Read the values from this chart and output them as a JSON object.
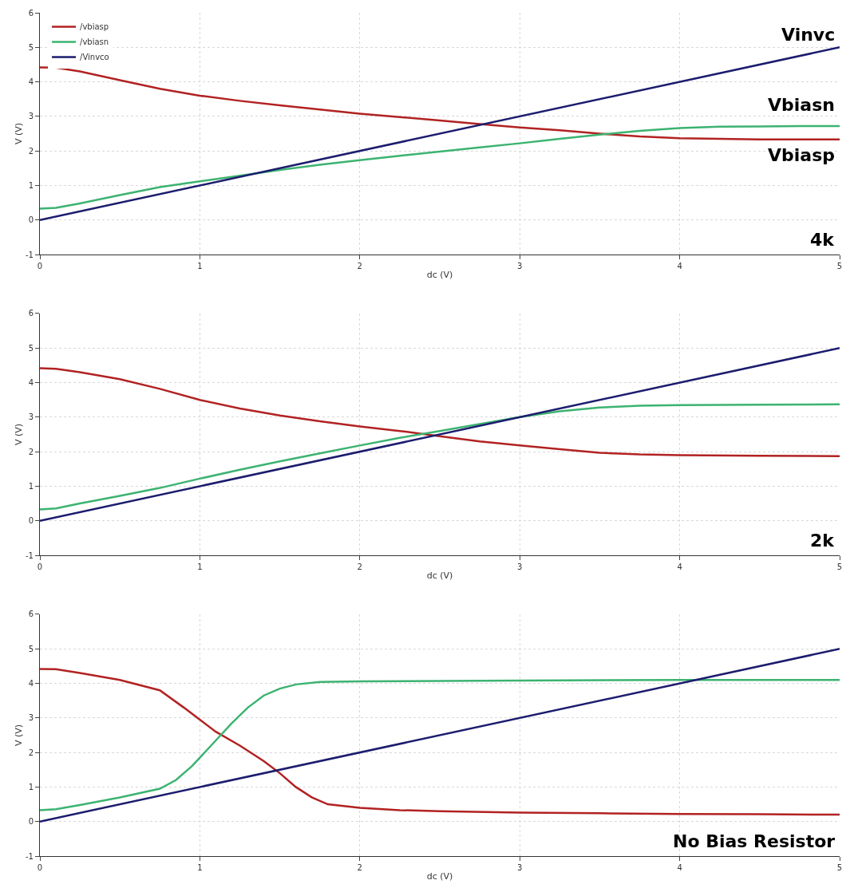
{
  "chart_data": [
    {
      "type": "line",
      "xlabel": "dc (V)",
      "ylabel": "V (V)",
      "xlim": [
        0,
        5
      ],
      "ylim": [
        -1,
        6
      ],
      "xticks": [
        0,
        1,
        2,
        3,
        4,
        5
      ],
      "yticks": [
        -1,
        0,
        1,
        2,
        3,
        4,
        5,
        6
      ],
      "grid": true,
      "legend": "top left",
      "marker": "none",
      "line_style": "solid",
      "series": [
        {
          "name": "/vbiasp",
          "color": "#b22222",
          "x": [
            0,
            0.1,
            0.25,
            0.5,
            0.75,
            1,
            1.25,
            1.5,
            1.75,
            2,
            2.25,
            2.5,
            2.75,
            3,
            3.25,
            3.5,
            3.75,
            4,
            4.25,
            4.5,
            4.75,
            5
          ],
          "values": [
            4.42,
            4.41,
            4.3,
            4.05,
            3.8,
            3.6,
            3.45,
            3.32,
            3.2,
            3.08,
            2.98,
            2.88,
            2.78,
            2.68,
            2.6,
            2.5,
            2.42,
            2.37,
            2.35,
            2.33,
            2.33,
            2.33
          ]
        },
        {
          "name": "/vbiasn",
          "color": "#3cb371",
          "x": [
            0,
            0.1,
            0.25,
            0.5,
            0.75,
            1,
            1.25,
            1.5,
            1.75,
            2,
            2.25,
            2.5,
            2.75,
            3,
            3.25,
            3.5,
            3.75,
            4,
            4.25,
            4.5,
            4.75,
            5
          ],
          "values": [
            0.33,
            0.35,
            0.48,
            0.72,
            0.95,
            1.12,
            1.28,
            1.45,
            1.6,
            1.73,
            1.86,
            1.98,
            2.1,
            2.22,
            2.35,
            2.47,
            2.58,
            2.66,
            2.7,
            2.71,
            2.72,
            2.72
          ]
        },
        {
          "name": "/Vinvco",
          "color": "#1c1c6e",
          "x": [
            0,
            5
          ],
          "values": [
            0,
            5
          ]
        }
      ],
      "annotations": [
        "Vinvc",
        "Vbiasn",
        "Vbiasp",
        "4k"
      ]
    },
    {
      "type": "line",
      "xlabel": "dc (V)",
      "ylabel": "V (V)",
      "xlim": [
        0,
        5
      ],
      "ylim": [
        -1,
        6
      ],
      "xticks": [
        0,
        1,
        2,
        3,
        4,
        5
      ],
      "yticks": [
        -1,
        0,
        1,
        2,
        3,
        4,
        5,
        6
      ],
      "grid": true,
      "marker": "none",
      "line_style": "solid",
      "series": [
        {
          "color": "#b22222",
          "x": [
            0,
            0.1,
            0.25,
            0.5,
            0.75,
            1,
            1.25,
            1.5,
            1.75,
            2,
            2.25,
            2.5,
            2.75,
            3,
            3.25,
            3.5,
            3.75,
            4,
            4.5,
            5
          ],
          "values": [
            4.42,
            4.4,
            4.3,
            4.1,
            3.82,
            3.5,
            3.25,
            3.05,
            2.88,
            2.73,
            2.6,
            2.45,
            2.3,
            2.18,
            2.07,
            1.97,
            1.92,
            1.9,
            1.88,
            1.87
          ]
        },
        {
          "color": "#3cb371",
          "x": [
            0,
            0.1,
            0.25,
            0.5,
            0.75,
            1,
            1.25,
            1.5,
            1.75,
            2,
            2.25,
            2.5,
            2.75,
            3,
            3.25,
            3.5,
            3.75,
            4,
            4.5,
            5
          ],
          "values": [
            0.33,
            0.36,
            0.5,
            0.72,
            0.95,
            1.22,
            1.48,
            1.72,
            1.95,
            2.18,
            2.4,
            2.6,
            2.8,
            3.0,
            3.17,
            3.28,
            3.33,
            3.35,
            3.36,
            3.37
          ]
        },
        {
          "color": "#1c1c6e",
          "x": [
            0,
            5
          ],
          "values": [
            0,
            5
          ]
        }
      ],
      "annotations": [
        "2k"
      ]
    },
    {
      "type": "line",
      "xlabel": "dc (V)",
      "ylabel": "V (V)",
      "xlim": [
        0,
        5
      ],
      "ylim": [
        -1,
        6
      ],
      "xticks": [
        0,
        1,
        2,
        3,
        4,
        5
      ],
      "yticks": [
        -1,
        0,
        1,
        2,
        3,
        4,
        5,
        6
      ],
      "grid": true,
      "marker": "none",
      "line_style": "solid",
      "series": [
        {
          "color": "#b22222",
          "x": [
            0,
            0.1,
            0.25,
            0.5,
            0.75,
            0.9,
            1,
            1.1,
            1.25,
            1.4,
            1.5,
            1.6,
            1.7,
            1.8,
            2,
            2.25,
            2.5,
            3,
            3.5,
            4,
            4.5,
            5
          ],
          "values": [
            4.42,
            4.41,
            4.3,
            4.1,
            3.8,
            3.3,
            2.95,
            2.6,
            2.2,
            1.75,
            1.4,
            1.0,
            0.7,
            0.5,
            0.4,
            0.33,
            0.3,
            0.26,
            0.24,
            0.22,
            0.21,
            0.2
          ]
        },
        {
          "color": "#3cb371",
          "x": [
            0,
            0.1,
            0.25,
            0.5,
            0.75,
            0.85,
            0.95,
            1,
            1.1,
            1.2,
            1.3,
            1.4,
            1.5,
            1.6,
            1.75,
            2,
            3,
            4,
            5
          ],
          "values": [
            0.33,
            0.36,
            0.48,
            0.7,
            0.95,
            1.2,
            1.6,
            1.85,
            2.35,
            2.85,
            3.3,
            3.65,
            3.85,
            3.97,
            4.04,
            4.06,
            4.08,
            4.1,
            4.1
          ]
        },
        {
          "color": "#1c1c6e",
          "x": [
            0,
            5
          ],
          "values": [
            0,
            5
          ]
        }
      ],
      "annotations": [
        "No Bias Resistor"
      ]
    }
  ]
}
